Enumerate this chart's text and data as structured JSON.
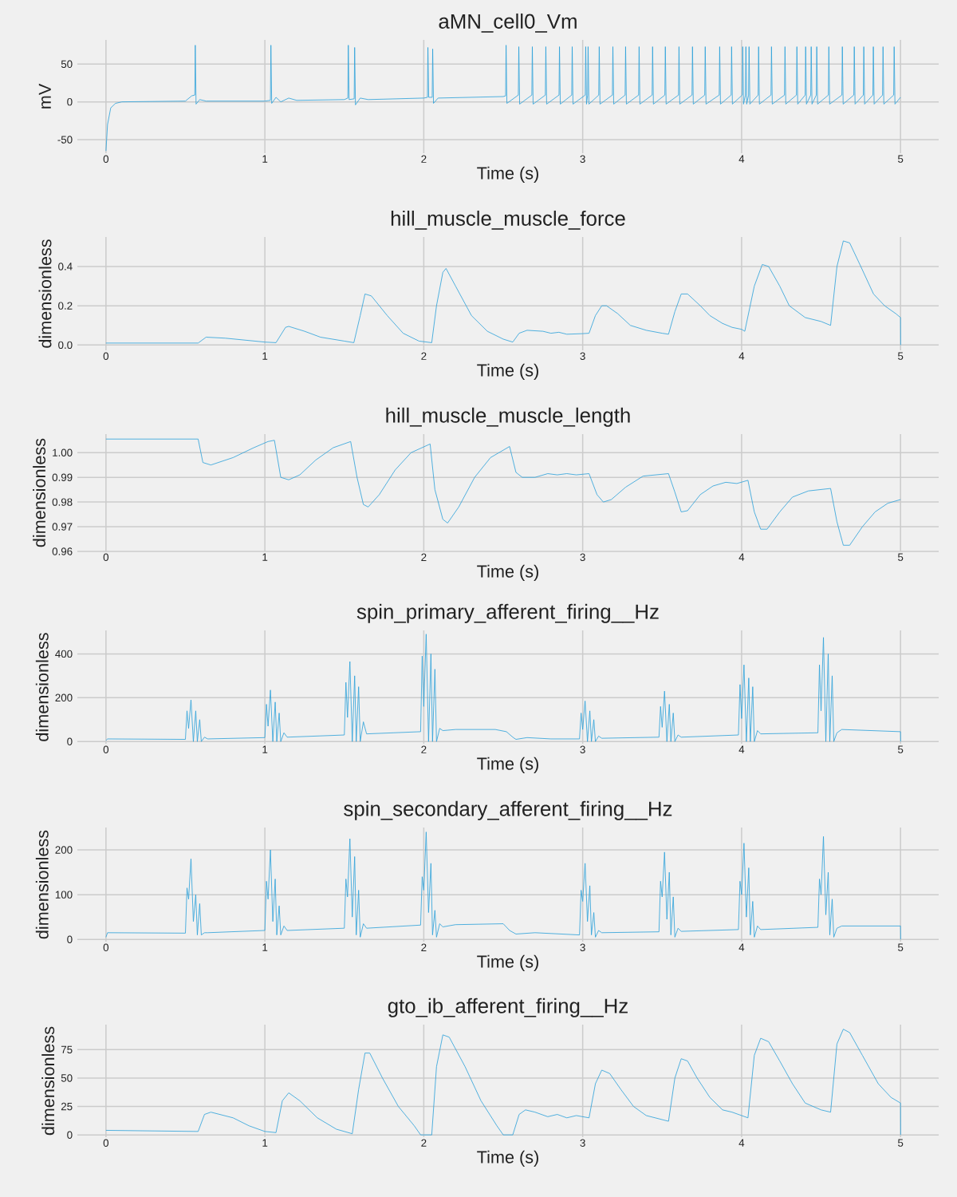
{
  "chart_data": [
    {
      "type": "line",
      "title": "aMN_cell0_Vm",
      "xlabel": "Time (s)",
      "ylabel": "mV",
      "color": "#30a2da",
      "grid": true,
      "xlim": [
        -0.18,
        5.24
      ],
      "ylim": [
        -68,
        82
      ],
      "xticks": [
        0,
        1,
        2,
        3,
        4,
        5
      ],
      "yticks": [
        -50,
        0,
        50
      ],
      "x": [
        0,
        0.01,
        0.03,
        0.06,
        0.1,
        0.5,
        0.54,
        0.559,
        0.562,
        0.567,
        0.59,
        0.63,
        1.0,
        1.035,
        1.038,
        1.043,
        1.07,
        1.1,
        1.15,
        1.2,
        1.5,
        1.522,
        1.525,
        1.53,
        1.562,
        1.565,
        1.57,
        1.6,
        1.65,
        2.0,
        2.023,
        2.026,
        2.031,
        2.053,
        2.056,
        2.061,
        2.09,
        2.5,
        2.515,
        2.518,
        2.523,
        2.595,
        2.598,
        2.603,
        2.68,
        2.683,
        2.688,
        2.765,
        2.768,
        2.773,
        2.851,
        2.854,
        2.859,
        2.931,
        2.934,
        2.939,
        3.016,
        3.019,
        3.024,
        3.031,
        3.034,
        3.039,
        3.101,
        3.104,
        3.109,
        3.187,
        3.19,
        3.195,
        3.267,
        3.27,
        3.275,
        3.352,
        3.355,
        3.36,
        3.437,
        3.44,
        3.445,
        3.517,
        3.52,
        3.525,
        3.603,
        3.606,
        3.611,
        3.688,
        3.691,
        3.696,
        3.768,
        3.771,
        3.776,
        3.859,
        3.862,
        3.867,
        3.934,
        3.937,
        3.942,
        4.004,
        4.007,
        4.012,
        4.024,
        4.027,
        4.032,
        4.044,
        4.047,
        4.052,
        4.104,
        4.107,
        4.112,
        4.185,
        4.188,
        4.193,
        4.27,
        4.273,
        4.278,
        4.345,
        4.348,
        4.353,
        4.4,
        4.403,
        4.408,
        4.435,
        4.438,
        4.443,
        4.47,
        4.473,
        4.478,
        4.546,
        4.549,
        4.554,
        4.631,
        4.634,
        4.639,
        4.706,
        4.709,
        4.714,
        4.766,
        4.769,
        4.774,
        4.826,
        4.829,
        4.834,
        4.887,
        4.89,
        4.895,
        4.957,
        4.96,
        4.965,
        5.0
      ],
      "values": [
        -65,
        -30,
        -8,
        -2,
        0,
        1,
        8,
        9,
        75,
        -3,
        3,
        1,
        1,
        2,
        75,
        -2,
        6,
        0,
        5,
        2,
        3,
        5,
        75,
        3,
        4,
        72,
        -4,
        5,
        3,
        5,
        6,
        72,
        6,
        6,
        70,
        -2,
        5,
        7,
        8,
        75,
        -2,
        9,
        73,
        -3,
        9,
        73,
        -3,
        9,
        73,
        -3,
        9,
        73,
        -3,
        9,
        73,
        -3,
        9,
        73,
        -3,
        9,
        73,
        -3,
        9,
        73,
        -3,
        9,
        73,
        -3,
        9,
        73,
        -3,
        9,
        73,
        -3,
        9,
        73,
        -3,
        9,
        73,
        -3,
        9,
        73,
        -3,
        9,
        73,
        -3,
        9,
        73,
        -3,
        9,
        73,
        -3,
        9,
        73,
        -3,
        9,
        73,
        -3,
        9,
        73,
        -3,
        9,
        73,
        -3,
        9,
        73,
        -3,
        9,
        73,
        -3,
        9,
        73,
        -3,
        9,
        73,
        -3,
        9,
        73,
        -3,
        9,
        73,
        -3,
        9,
        73,
        -3,
        9,
        73,
        -3,
        9,
        73,
        -3,
        9,
        73,
        -3,
        9,
        73,
        -3,
        9,
        73,
        -3,
        9,
        73,
        -3,
        9,
        73,
        -3,
        6
      ]
    },
    {
      "type": "line",
      "title": "hill_muscle_muscle_force",
      "xlabel": "Time (s)",
      "ylabel": "dimensionless",
      "color": "#30a2da",
      "grid": true,
      "xlim": [
        -0.18,
        5.24
      ],
      "ylim": [
        -0.027,
        0.55
      ],
      "xticks": [
        0,
        1,
        2,
        3,
        4,
        5
      ],
      "yticks": [
        {
          "value": 0,
          "label": "0.0"
        },
        {
          "value": 0.2,
          "label": "0.2"
        },
        {
          "value": 0.4,
          "label": "0.4"
        }
      ],
      "x": [
        0,
        0.58,
        0.63,
        0.75,
        1.0,
        1.07,
        1.13,
        1.15,
        1.25,
        1.35,
        1.5,
        1.56,
        1.6,
        1.63,
        1.67,
        1.77,
        1.87,
        1.97,
        2.05,
        2.08,
        2.12,
        2.14,
        2.2,
        2.3,
        2.4,
        2.5,
        2.56,
        2.6,
        2.65,
        2.75,
        2.8,
        2.85,
        2.9,
        3.0,
        3.04,
        3.08,
        3.12,
        3.15,
        3.22,
        3.3,
        3.4,
        3.5,
        3.54,
        3.58,
        3.62,
        3.66,
        3.74,
        3.8,
        3.88,
        3.94,
        4.0,
        4.02,
        4.08,
        4.13,
        4.17,
        4.24,
        4.3,
        4.4,
        4.5,
        4.56,
        4.6,
        4.64,
        4.68,
        4.75,
        4.83,
        4.9,
        4.97,
        5.0,
        5.001
      ],
      "values": [
        0.01,
        0.01,
        0.04,
        0.035,
        0.015,
        0.012,
        0.09,
        0.095,
        0.07,
        0.04,
        0.02,
        0.012,
        0.15,
        0.26,
        0.25,
        0.15,
        0.06,
        0.02,
        0.012,
        0.2,
        0.37,
        0.39,
        0.3,
        0.15,
        0.07,
        0.03,
        0.015,
        0.06,
        0.075,
        0.07,
        0.06,
        0.065,
        0.055,
        0.058,
        0.06,
        0.15,
        0.2,
        0.2,
        0.16,
        0.1,
        0.075,
        0.06,
        0.055,
        0.17,
        0.26,
        0.26,
        0.2,
        0.15,
        0.11,
        0.09,
        0.08,
        0.07,
        0.3,
        0.41,
        0.4,
        0.3,
        0.2,
        0.14,
        0.12,
        0.1,
        0.4,
        0.53,
        0.52,
        0.4,
        0.26,
        0.2,
        0.16,
        0.14,
        0
      ]
    },
    {
      "type": "line",
      "title": "hill_muscle_muscle_length",
      "xlabel": "Time (s)",
      "ylabel": "dimensionless",
      "color": "#30a2da",
      "grid": true,
      "xlim": [
        -0.18,
        5.24
      ],
      "ylim": [
        0.96,
        1.0075
      ],
      "xticks": [
        0,
        1,
        2,
        3,
        4,
        5
      ],
      "yticks": [
        {
          "value": 0.96,
          "label": "0.96"
        },
        {
          "value": 0.97,
          "label": "0.97"
        },
        {
          "value": 0.98,
          "label": "0.98"
        },
        {
          "value": 0.99,
          "label": "0.99"
        },
        {
          "value": 1.0,
          "label": "1.00"
        }
      ],
      "x": [
        0,
        0.58,
        0.61,
        0.66,
        0.8,
        0.93,
        1.02,
        1.06,
        1.1,
        1.15,
        1.22,
        1.32,
        1.43,
        1.54,
        1.58,
        1.62,
        1.65,
        1.72,
        1.82,
        1.92,
        2.04,
        2.07,
        2.12,
        2.15,
        2.22,
        2.32,
        2.42,
        2.54,
        2.58,
        2.62,
        2.7,
        2.78,
        2.84,
        2.9,
        2.96,
        3.04,
        3.09,
        3.13,
        3.18,
        3.27,
        3.38,
        3.54,
        3.58,
        3.62,
        3.66,
        3.74,
        3.82,
        3.9,
        3.97,
        4.04,
        4.08,
        4.12,
        4.16,
        4.24,
        4.32,
        4.42,
        4.56,
        4.6,
        4.64,
        4.68,
        4.76,
        4.84,
        4.92,
        5.0
      ],
      "values": [
        1.0055,
        1.0055,
        0.996,
        0.995,
        0.998,
        1.002,
        1.0045,
        1.005,
        0.99,
        0.989,
        0.991,
        0.997,
        1.002,
        1.0045,
        0.99,
        0.979,
        0.978,
        0.983,
        0.993,
        1.0,
        1.0035,
        0.985,
        0.973,
        0.9715,
        0.978,
        0.99,
        0.998,
        1.0025,
        0.992,
        0.99,
        0.99,
        0.9915,
        0.991,
        0.9915,
        0.991,
        0.9915,
        0.983,
        0.98,
        0.981,
        0.986,
        0.9905,
        0.9915,
        0.984,
        0.976,
        0.9765,
        0.983,
        0.9865,
        0.988,
        0.9875,
        0.9888,
        0.976,
        0.969,
        0.969,
        0.976,
        0.982,
        0.9845,
        0.9855,
        0.972,
        0.9625,
        0.9625,
        0.97,
        0.976,
        0.9795,
        0.981
      ]
    },
    {
      "type": "line",
      "title": "spin_primary_afferent_firing__Hz",
      "xlabel": "Time (s)",
      "ylabel": "dimensionless",
      "color": "#30a2da",
      "grid": true,
      "xlim": [
        -0.18,
        5.24
      ],
      "ylim": [
        -10,
        507
      ],
      "xticks": [
        0,
        1,
        2,
        3,
        4,
        5
      ],
      "yticks": [
        0,
        200,
        400
      ],
      "x": [
        0,
        0.01,
        0.5,
        0.51,
        0.52,
        0.535,
        0.55,
        0.565,
        0.575,
        0.59,
        0.6,
        0.62,
        0.64,
        1.0,
        1.01,
        1.02,
        1.035,
        1.05,
        1.065,
        1.075,
        1.09,
        1.1,
        1.12,
        1.14,
        1.5,
        1.51,
        1.52,
        1.535,
        1.55,
        1.565,
        1.575,
        1.59,
        1.6,
        1.62,
        1.64,
        1.98,
        1.99,
        2.0,
        2.015,
        2.03,
        2.045,
        2.055,
        2.07,
        2.08,
        2.1,
        2.12,
        2.2,
        2.45,
        2.52,
        2.56,
        2.58,
        2.65,
        2.8,
        2.98,
        2.99,
        3.0,
        3.015,
        3.03,
        3.045,
        3.055,
        3.07,
        3.08,
        3.1,
        3.12,
        3.48,
        3.49,
        3.5,
        3.515,
        3.53,
        3.545,
        3.555,
        3.57,
        3.58,
        3.6,
        3.62,
        3.98,
        3.99,
        4.0,
        4.015,
        4.03,
        4.045,
        4.055,
        4.07,
        4.08,
        4.1,
        4.12,
        4.48,
        4.49,
        4.5,
        4.515,
        4.53,
        4.545,
        4.555,
        4.57,
        4.58,
        4.6,
        4.63,
        5.0,
        5.001
      ],
      "values": [
        5,
        12,
        10,
        140,
        60,
        190,
        0,
        140,
        0,
        100,
        0,
        20,
        12,
        18,
        170,
        70,
        235,
        0,
        180,
        0,
        130,
        0,
        40,
        20,
        30,
        270,
        110,
        365,
        0,
        300,
        0,
        250,
        0,
        90,
        35,
        45,
        390,
        160,
        490,
        0,
        400,
        0,
        330,
        0,
        60,
        50,
        55,
        55,
        45,
        20,
        10,
        18,
        12,
        12,
        130,
        55,
        185,
        0,
        140,
        0,
        100,
        0,
        25,
        15,
        20,
        160,
        65,
        230,
        0,
        170,
        0,
        130,
        0,
        30,
        20,
        30,
        260,
        105,
        350,
        0,
        290,
        0,
        250,
        0,
        50,
        35,
        40,
        350,
        140,
        475,
        0,
        400,
        0,
        300,
        0,
        40,
        55,
        45,
        0
      ]
    },
    {
      "type": "line",
      "title": "spin_secondary_afferent_firing__Hz",
      "xlabel": "Time (s)",
      "ylabel": "dimensionless",
      "color": "#30a2da",
      "grid": true,
      "xlim": [
        -0.18,
        5.24
      ],
      "ylim": [
        -5,
        250
      ],
      "xticks": [
        0,
        1,
        2,
        3,
        4,
        5
      ],
      "yticks": [
        0,
        100,
        200
      ],
      "x": [
        0,
        0.01,
        0.5,
        0.51,
        0.52,
        0.535,
        0.55,
        0.565,
        0.575,
        0.59,
        0.6,
        0.62,
        0.64,
        1.0,
        1.01,
        1.02,
        1.035,
        1.05,
        1.065,
        1.075,
        1.09,
        1.1,
        1.12,
        1.14,
        1.5,
        1.51,
        1.52,
        1.535,
        1.55,
        1.565,
        1.575,
        1.59,
        1.6,
        1.62,
        1.64,
        1.98,
        1.99,
        2.0,
        2.015,
        2.03,
        2.045,
        2.055,
        2.07,
        2.08,
        2.1,
        2.12,
        2.2,
        2.5,
        2.54,
        2.58,
        2.7,
        2.98,
        2.99,
        3.0,
        3.015,
        3.03,
        3.045,
        3.055,
        3.07,
        3.08,
        3.1,
        3.12,
        3.48,
        3.49,
        3.5,
        3.515,
        3.53,
        3.545,
        3.555,
        3.57,
        3.58,
        3.6,
        3.62,
        3.98,
        3.99,
        4.0,
        4.015,
        4.03,
        4.045,
        4.055,
        4.07,
        4.08,
        4.1,
        4.12,
        4.48,
        4.49,
        4.5,
        4.515,
        4.53,
        4.545,
        4.555,
        4.57,
        4.58,
        4.6,
        4.63,
        5.0,
        5.001
      ],
      "values": [
        5,
        15,
        14,
        115,
        90,
        180,
        40,
        100,
        10,
        80,
        10,
        15,
        15,
        20,
        130,
        90,
        200,
        40,
        135,
        10,
        75,
        10,
        30,
        20,
        25,
        135,
        95,
        225,
        50,
        185,
        10,
        110,
        5,
        35,
        25,
        32,
        140,
        110,
        240,
        60,
        170,
        10,
        65,
        5,
        35,
        28,
        33,
        35,
        20,
        12,
        15,
        10,
        110,
        85,
        170,
        40,
        120,
        10,
        60,
        5,
        20,
        15,
        17,
        130,
        95,
        195,
        45,
        150,
        10,
        95,
        5,
        25,
        18,
        22,
        130,
        100,
        215,
        50,
        160,
        10,
        85,
        5,
        30,
        22,
        27,
        135,
        100,
        230,
        55,
        150,
        10,
        90,
        5,
        25,
        30,
        30,
        0
      ]
    },
    {
      "type": "line",
      "title": "gto_ib_afferent_firing__Hz",
      "xlabel": "Time (s)",
      "ylabel": "dimensionless",
      "color": "#30a2da",
      "grid": true,
      "xlim": [
        -0.18,
        5.24
      ],
      "ylim": [
        -2,
        97
      ],
      "xticks": [
        0,
        1,
        2,
        3,
        4,
        5
      ],
      "yticks": [
        0,
        25,
        50,
        75
      ],
      "x": [
        0,
        0.58,
        0.62,
        0.66,
        0.8,
        0.9,
        1.0,
        1.07,
        1.11,
        1.15,
        1.22,
        1.33,
        1.45,
        1.55,
        1.59,
        1.63,
        1.66,
        1.74,
        1.84,
        1.94,
        1.98,
        2.05,
        2.08,
        2.12,
        2.16,
        2.26,
        2.36,
        2.46,
        2.5,
        2.56,
        2.6,
        2.64,
        2.7,
        2.78,
        2.84,
        2.9,
        2.96,
        3.04,
        3.08,
        3.12,
        3.17,
        3.24,
        3.32,
        3.4,
        3.54,
        3.58,
        3.62,
        3.66,
        3.72,
        3.8,
        3.88,
        3.94,
        4.04,
        4.08,
        4.12,
        4.17,
        4.24,
        4.32,
        4.4,
        4.5,
        4.56,
        4.6,
        4.64,
        4.68,
        4.76,
        4.86,
        4.94,
        5.0,
        5.001
      ],
      "values": [
        4,
        3,
        18,
        20,
        15,
        8,
        3,
        2,
        30,
        37,
        30,
        15,
        5,
        1,
        40,
        72,
        72,
        50,
        25,
        8,
        0,
        0,
        60,
        88,
        86,
        60,
        30,
        8,
        0,
        0,
        18,
        22,
        20,
        16,
        18,
        15,
        17,
        15,
        45,
        57,
        54,
        40,
        25,
        17,
        12,
        50,
        67,
        65,
        50,
        33,
        22,
        20,
        15,
        70,
        85,
        82,
        65,
        45,
        28,
        22,
        20,
        80,
        93,
        90,
        70,
        45,
        33,
        28,
        0
      ]
    }
  ]
}
